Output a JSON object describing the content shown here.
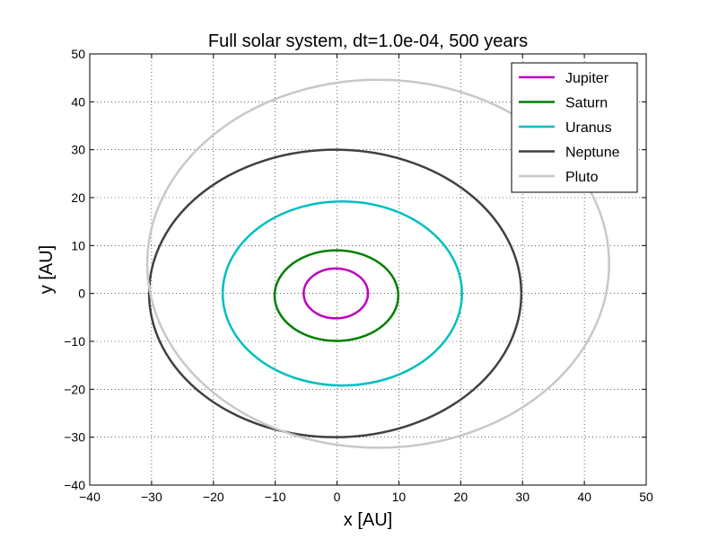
{
  "chart_data": {
    "type": "line",
    "title": "Full solar system, dt=1.0e-04, 500 years",
    "xlabel": "x [AU]",
    "ylabel": "y [AU]",
    "xlim": [
      -40,
      50
    ],
    "ylim": [
      -40,
      50
    ],
    "xticks": [
      -40,
      -30,
      -20,
      -10,
      0,
      10,
      20,
      30,
      40,
      50
    ],
    "yticks": [
      -40,
      -30,
      -20,
      -10,
      0,
      10,
      20,
      30,
      40,
      50
    ],
    "xtick_labels": [
      "−40",
      "−30",
      "−20",
      "−10",
      "0",
      "10",
      "20",
      "30",
      "40",
      "50"
    ],
    "ytick_labels": [
      "−40",
      "−30",
      "−20",
      "−10",
      "0",
      "10",
      "20",
      "30",
      "40",
      "50"
    ],
    "grid": true,
    "legend_position": "top-right",
    "series": [
      {
        "name": "Jupiter",
        "color": "#bf00bf",
        "orbit": {
          "x_min": -5.4,
          "x_max": 5.0,
          "y_min": -5.2,
          "y_max": 5.2
        }
      },
      {
        "name": "Saturn",
        "color": "#007f00",
        "orbit": {
          "x_min": -10.1,
          "x_max": 9.9,
          "y_min": -9.9,
          "y_max": 9.0
        }
      },
      {
        "name": "Uranus",
        "color": "#00bfbf",
        "orbit": {
          "x_min": -18.5,
          "x_max": 20.2,
          "y_min": -19.2,
          "y_max": 19.2
        }
      },
      {
        "name": "Neptune",
        "color": "#404040",
        "orbit": {
          "x_min": -30.4,
          "x_max": 29.8,
          "y_min": -30.0,
          "y_max": 30.0
        }
      },
      {
        "name": "Pluto",
        "color": "#c8c8c8",
        "orbit": {
          "x_min": -30.7,
          "x_max": 44.0,
          "y_min": -32.2,
          "y_max": 44.6
        }
      }
    ]
  }
}
